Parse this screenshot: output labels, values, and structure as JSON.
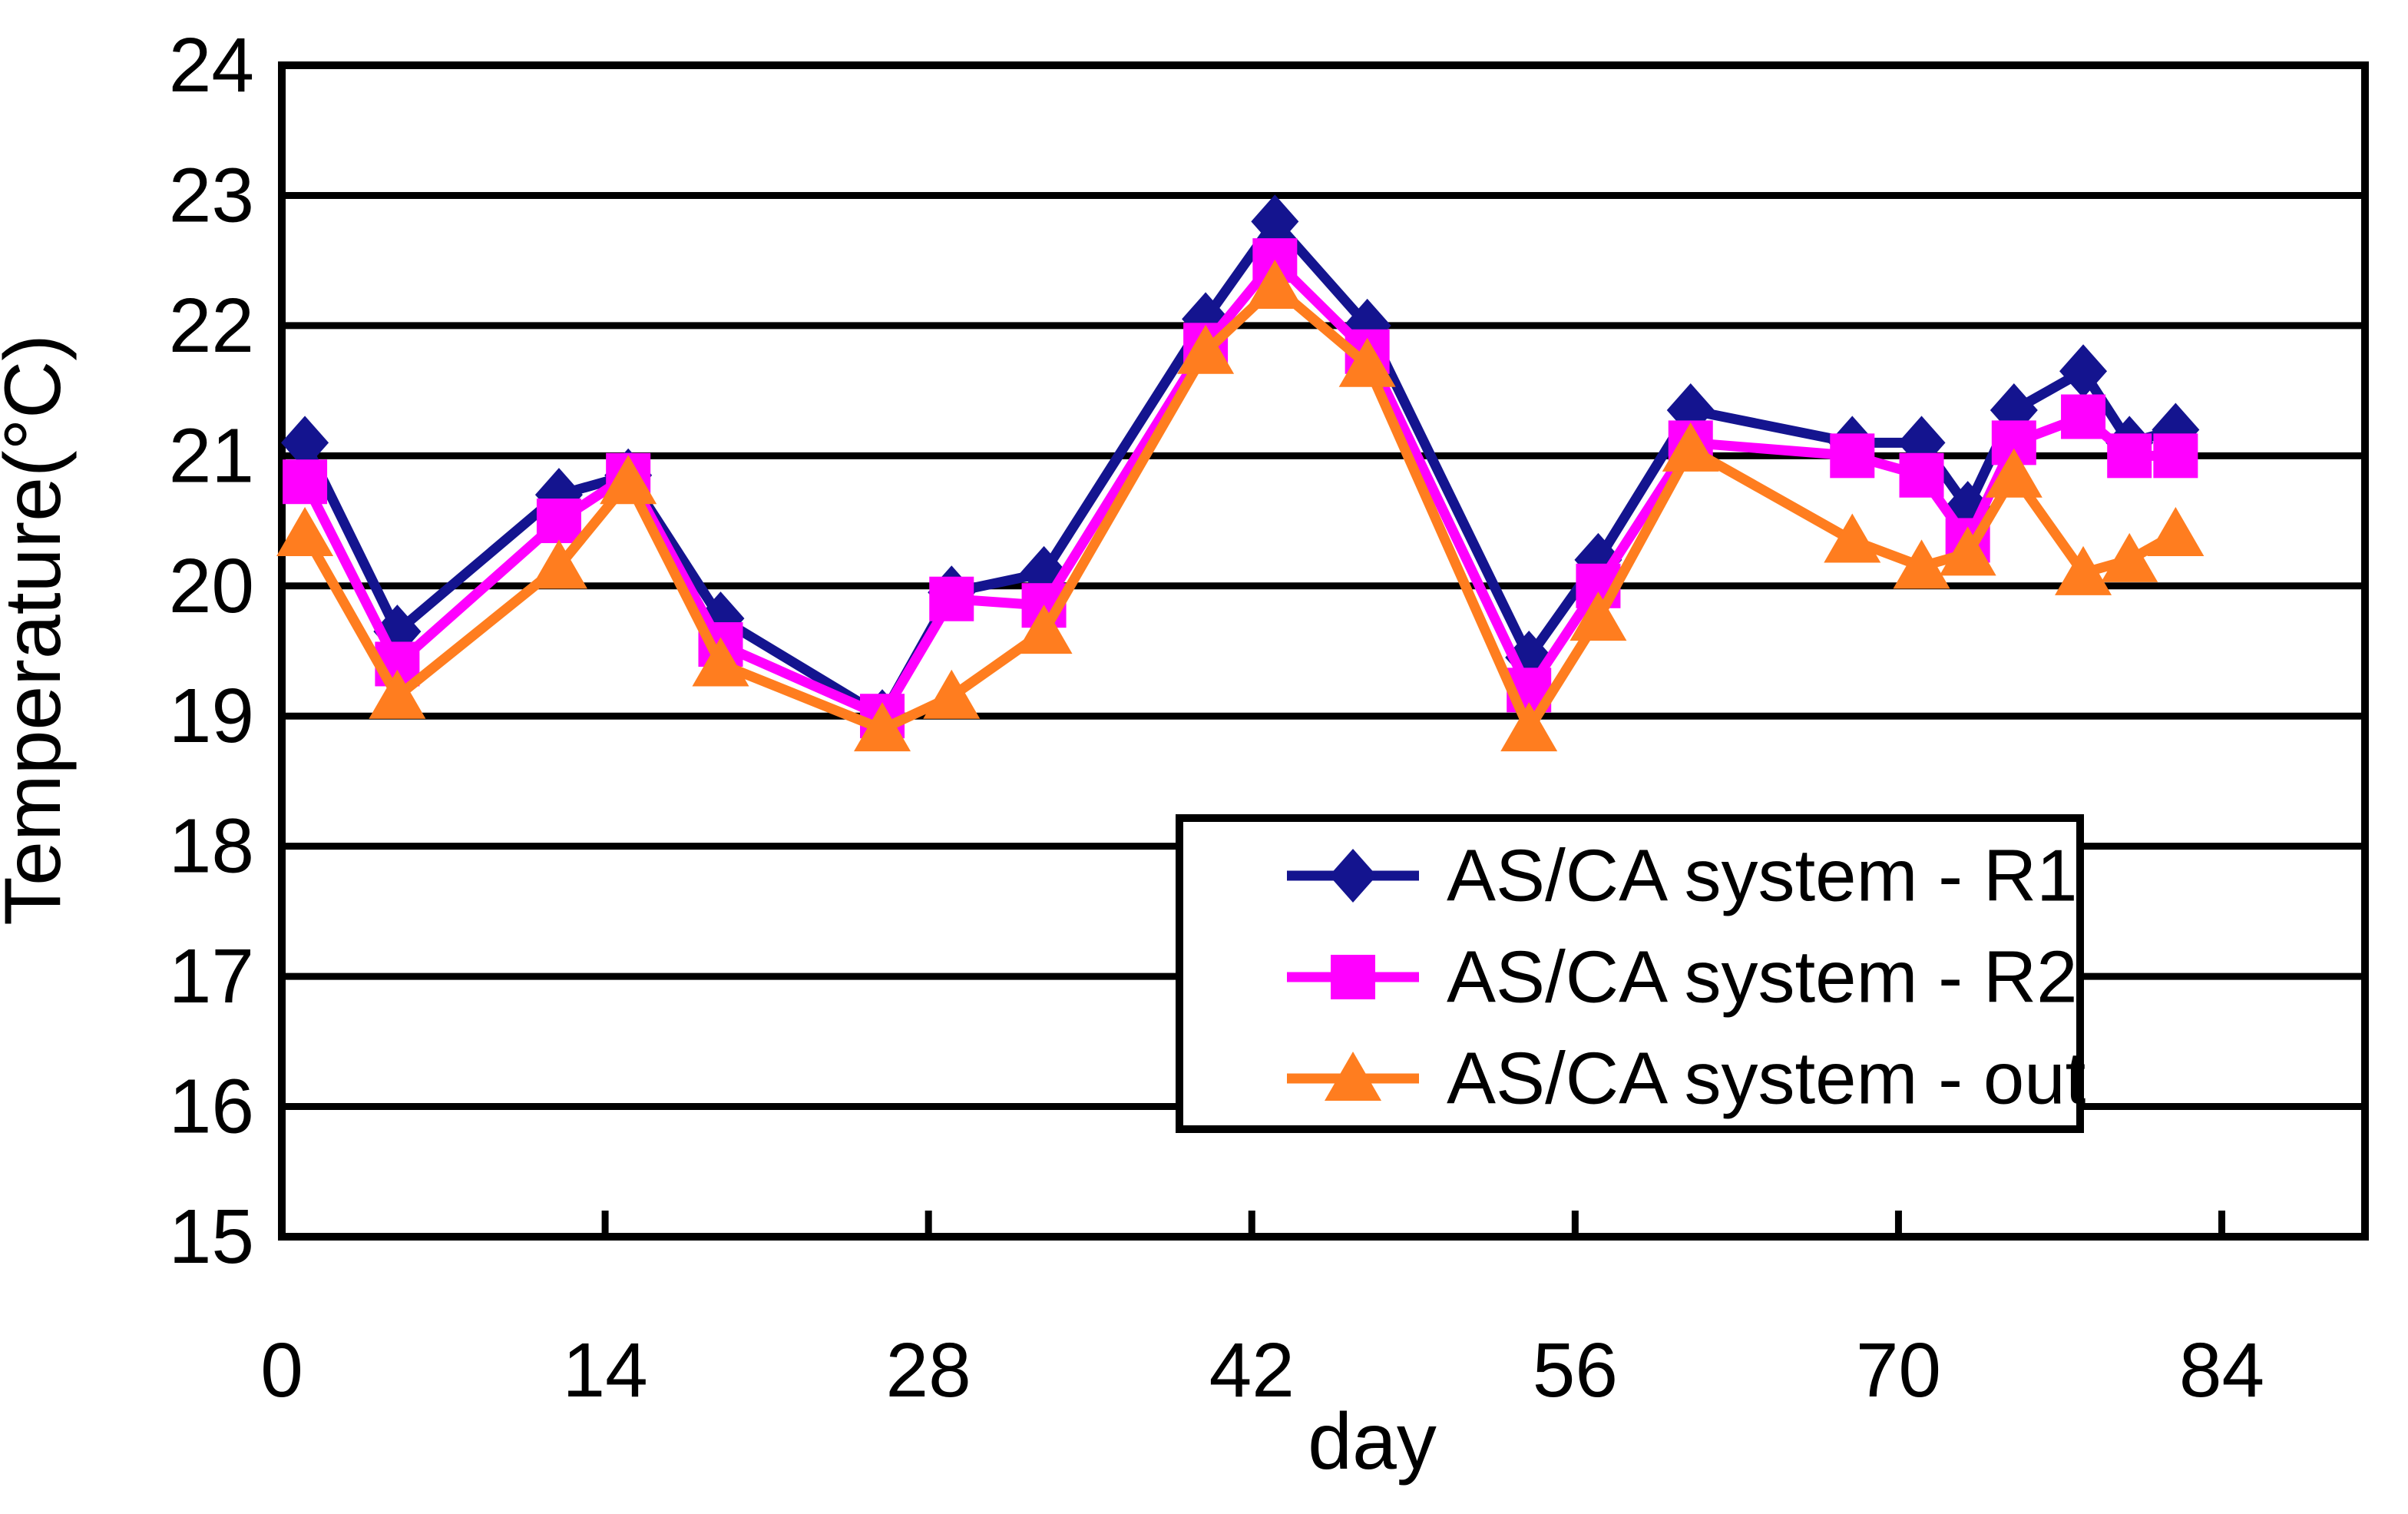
{
  "chart_data": {
    "type": "line",
    "title": "",
    "xlabel": "day",
    "ylabel": "Temperature(°C)",
    "xlim": [
      0,
      90.2
    ],
    "ylim": [
      15,
      24
    ],
    "grid": "horizontal",
    "legend_position": "inside-bottom-right-box",
    "xticks": [
      0,
      14,
      28,
      42,
      56,
      70,
      84
    ],
    "yticks": [
      15,
      16,
      17,
      18,
      19,
      20,
      21,
      22,
      23,
      24
    ],
    "x": [
      1,
      5,
      12,
      15,
      19,
      26,
      29,
      33,
      40,
      43,
      47,
      54,
      57,
      61,
      68,
      71,
      73,
      75,
      78,
      80,
      82
    ],
    "series": [
      {
        "name": "AS/CA system - R1",
        "marker": "diamond-marker",
        "color": "#14148F",
        "values": [
          21.1,
          19.65,
          20.7,
          20.85,
          19.75,
          19.0,
          19.95,
          20.1,
          22.05,
          22.8,
          22.0,
          19.45,
          20.2,
          21.35,
          21.1,
          21.1,
          20.6,
          21.35,
          21.65,
          21.1,
          21.2
        ]
      },
      {
        "name": "AS/CA system - R2",
        "marker": "square-marker",
        "color": "#FF00FF",
        "values": [
          20.8,
          19.4,
          20.5,
          20.85,
          19.55,
          19.0,
          19.9,
          19.85,
          21.85,
          22.5,
          21.8,
          19.2,
          20.0,
          21.1,
          21.0,
          20.85,
          20.35,
          21.1,
          21.3,
          21.0,
          21.0
        ]
      },
      {
        "name": "AS/CA system - out",
        "marker": "triangle-marker",
        "color": "#FF7D1F",
        "values": [
          20.4,
          19.15,
          20.15,
          20.8,
          19.4,
          18.9,
          19.15,
          19.65,
          21.8,
          22.3,
          21.7,
          18.9,
          19.75,
          21.05,
          20.35,
          20.15,
          20.25,
          20.85,
          20.1,
          20.2,
          20.4
        ]
      }
    ]
  }
}
